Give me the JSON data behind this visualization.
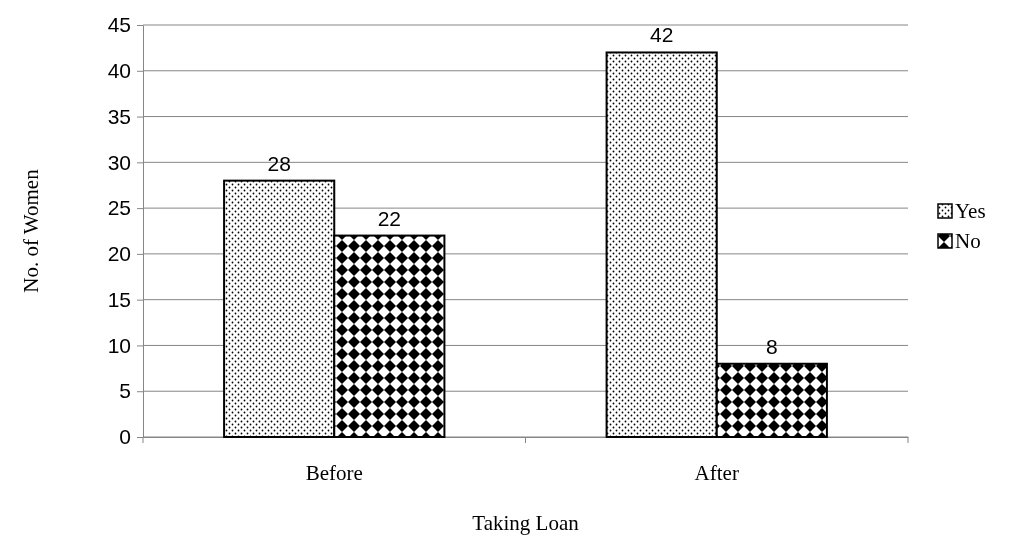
{
  "chart_data": {
    "type": "bar",
    "xlabel": "Taking Loan",
    "ylabel": "No. of Women",
    "categories": [
      "Before",
      "After"
    ],
    "series": [
      {
        "name": "Yes",
        "color": "#000000",
        "values": [
          28,
          42
        ]
      },
      {
        "name": "No",
        "color": "#000000",
        "values": [
          22,
          8
        ]
      }
    ],
    "ylim": [
      0,
      45
    ],
    "yticks": [
      0,
      5,
      10,
      15,
      20,
      25,
      30,
      35,
      40,
      45
    ],
    "grid": "y",
    "legend": "right",
    "data_labels": true
  }
}
